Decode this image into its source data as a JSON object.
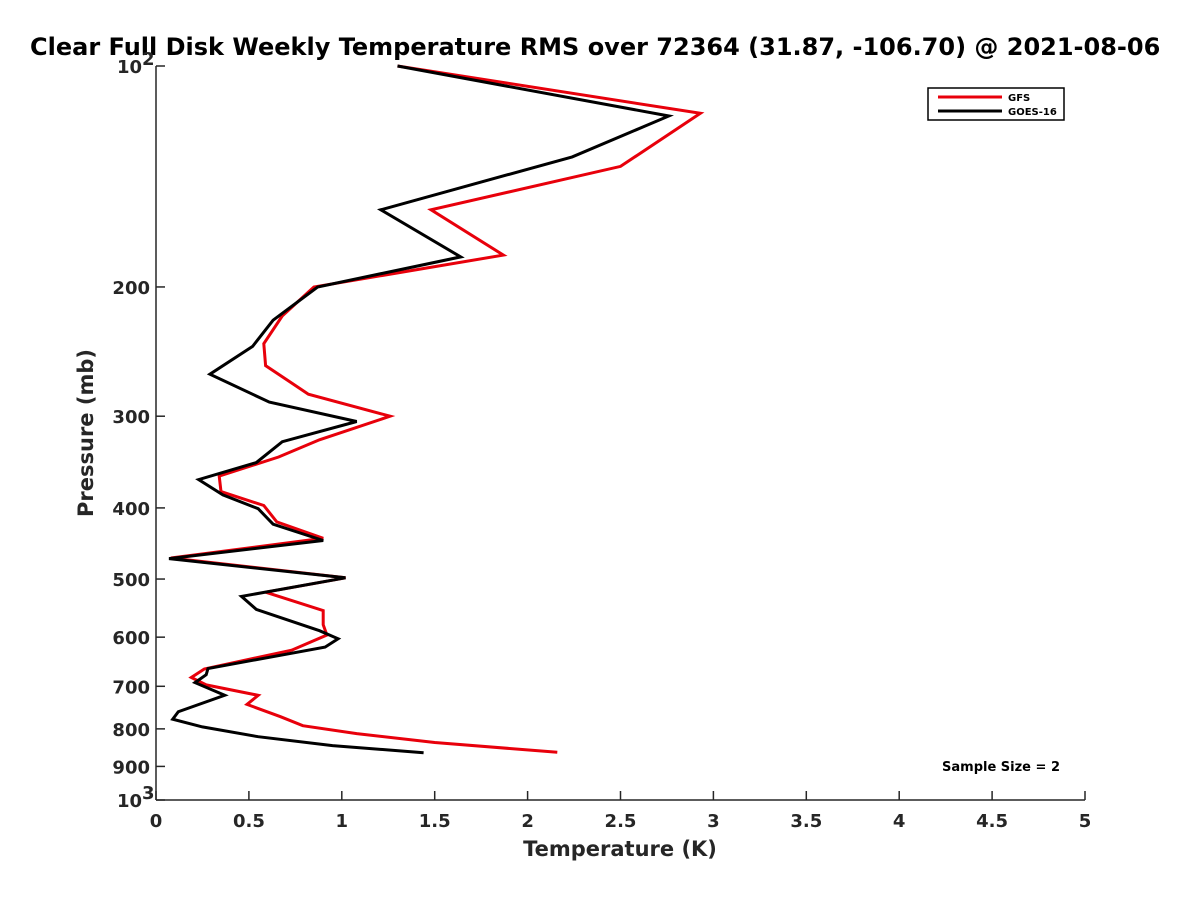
{
  "chart_data": {
    "type": "line",
    "title": "Clear Full Disk Weekly Temperature RMS over 72364 (31.87, -106.70) @ 2021-08-06",
    "xlabel": "Temperature (K)",
    "ylabel": "Pressure (mb)",
    "xlim": [
      0,
      5
    ],
    "ylim": [
      100,
      1000
    ],
    "yscale": "log",
    "y_reversed": true,
    "grid": false,
    "legend_position": "top-right",
    "x_tick_labels": [
      "0",
      "0.5",
      "1",
      "1.5",
      "2",
      "2.5",
      "3",
      "3.5",
      "4",
      "4.5",
      "5"
    ],
    "x_tick_values": [
      0,
      0.5,
      1,
      1.5,
      2,
      2.5,
      3,
      3.5,
      4,
      4.5,
      5
    ],
    "y_tick_values": [
      100,
      200,
      300,
      400,
      500,
      600,
      700,
      800,
      900,
      1000
    ],
    "y_tick_labels": [
      {
        "base": "10",
        "exp": "2"
      },
      {
        "base": "200",
        "exp": ""
      },
      {
        "base": "300",
        "exp": ""
      },
      {
        "base": "400",
        "exp": ""
      },
      {
        "base": "500",
        "exp": ""
      },
      {
        "base": "600",
        "exp": ""
      },
      {
        "base": "700",
        "exp": ""
      },
      {
        "base": "800",
        "exp": ""
      },
      {
        "base": "900",
        "exp": ""
      },
      {
        "base": "10",
        "exp": "3"
      }
    ],
    "annotation": "Sample Size = 2",
    "series": [
      {
        "name": "GFS",
        "color": "#e8000b",
        "points": [
          [
            1.3,
            100
          ],
          [
            2.93,
            116
          ],
          [
            2.5,
            137
          ],
          [
            1.48,
            157
          ],
          [
            1.87,
            181
          ],
          [
            0.85,
            200
          ],
          [
            0.68,
            219
          ],
          [
            0.58,
            239
          ],
          [
            0.59,
            256
          ],
          [
            0.82,
            280
          ],
          [
            1.26,
            300
          ],
          [
            0.88,
            323
          ],
          [
            0.66,
            341
          ],
          [
            0.34,
            362
          ],
          [
            0.35,
            380
          ],
          [
            0.58,
            397
          ],
          [
            0.65,
            418
          ],
          [
            0.9,
            440
          ],
          [
            0.08,
            468
          ],
          [
            1.02,
            498
          ],
          [
            0.59,
            521
          ],
          [
            0.9,
            552
          ],
          [
            0.9,
            577
          ],
          [
            0.92,
            596
          ],
          [
            0.73,
            625
          ],
          [
            0.26,
            663
          ],
          [
            0.19,
            681
          ],
          [
            0.27,
            697
          ],
          [
            0.55,
            720
          ],
          [
            0.49,
            741
          ],
          [
            0.67,
            770
          ],
          [
            0.79,
            792
          ],
          [
            1.08,
            812
          ],
          [
            1.5,
            835
          ],
          [
            2.16,
            861
          ]
        ]
      },
      {
        "name": "GOES-16",
        "color": "#000000",
        "points": [
          [
            1.3,
            100
          ],
          [
            2.76,
            117
          ],
          [
            2.24,
            133
          ],
          [
            1.21,
            157
          ],
          [
            1.64,
            182
          ],
          [
            0.87,
            200
          ],
          [
            0.63,
            222
          ],
          [
            0.52,
            241
          ],
          [
            0.29,
            263
          ],
          [
            0.61,
            287
          ],
          [
            1.08,
            305
          ],
          [
            0.68,
            325
          ],
          [
            0.54,
            347
          ],
          [
            0.23,
            366
          ],
          [
            0.36,
            384
          ],
          [
            0.55,
            401
          ],
          [
            0.63,
            421
          ],
          [
            0.9,
            443
          ],
          [
            0.07,
            469
          ],
          [
            1.02,
            498
          ],
          [
            0.46,
            528
          ],
          [
            0.54,
            550
          ],
          [
            0.88,
            588
          ],
          [
            0.98,
            603
          ],
          [
            0.91,
            619
          ],
          [
            0.28,
            662
          ],
          [
            0.27,
            675
          ],
          [
            0.21,
            692
          ],
          [
            0.37,
            720
          ],
          [
            0.12,
            758
          ],
          [
            0.09,
            776
          ],
          [
            0.25,
            795
          ],
          [
            0.55,
            820
          ],
          [
            0.95,
            843
          ],
          [
            1.44,
            862
          ]
        ]
      }
    ]
  }
}
